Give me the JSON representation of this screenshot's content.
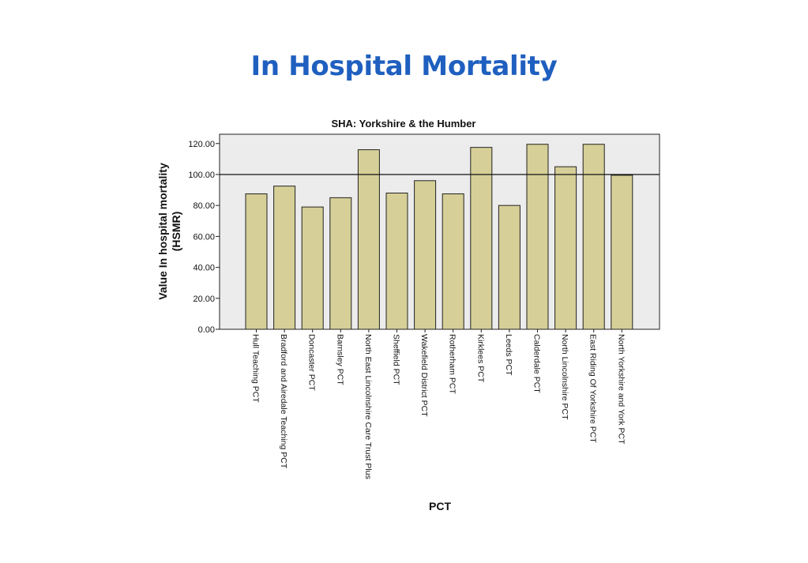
{
  "slide": {
    "title": "In Hospital Mortality"
  },
  "chart_data": {
    "type": "bar",
    "title": "SHA: Yorkshire & the Humber",
    "xlabel": "PCT",
    "ylabel_line1": "Value In hospital mortality",
    "ylabel_line2": "(HSMR)",
    "ylim": [
      0,
      126
    ],
    "yticks": [
      0,
      20,
      40,
      60,
      80,
      100,
      120
    ],
    "ytick_labels": [
      "0.00",
      "20.00",
      "40.00",
      "60.00",
      "80.00",
      "100.00",
      "120.00"
    ],
    "reference_line": 100,
    "bar_color": "#d6cf97",
    "plot_background": "#ececec",
    "categories": [
      "Hull Teaching PCT",
      "Bradford and Airedale Teaching PCT",
      "Doncaster PCT",
      "Barnsley PCT",
      "North East Lincolnshire Care Trust Plus",
      "Sheffield PCT",
      "Wakefield District PCT",
      "Rotherham PCT",
      "Kirklees PCT",
      "Leeds PCT",
      "Calderdale PCT",
      "North Lincolnshire PCT",
      "East Riding Of Yorkshire PCT",
      "North Yorkshire and York PCT"
    ],
    "values": [
      87.5,
      92.5,
      79,
      85,
      116,
      88,
      96,
      87.5,
      117.5,
      80,
      119.5,
      105,
      119.5,
      99.5
    ]
  }
}
